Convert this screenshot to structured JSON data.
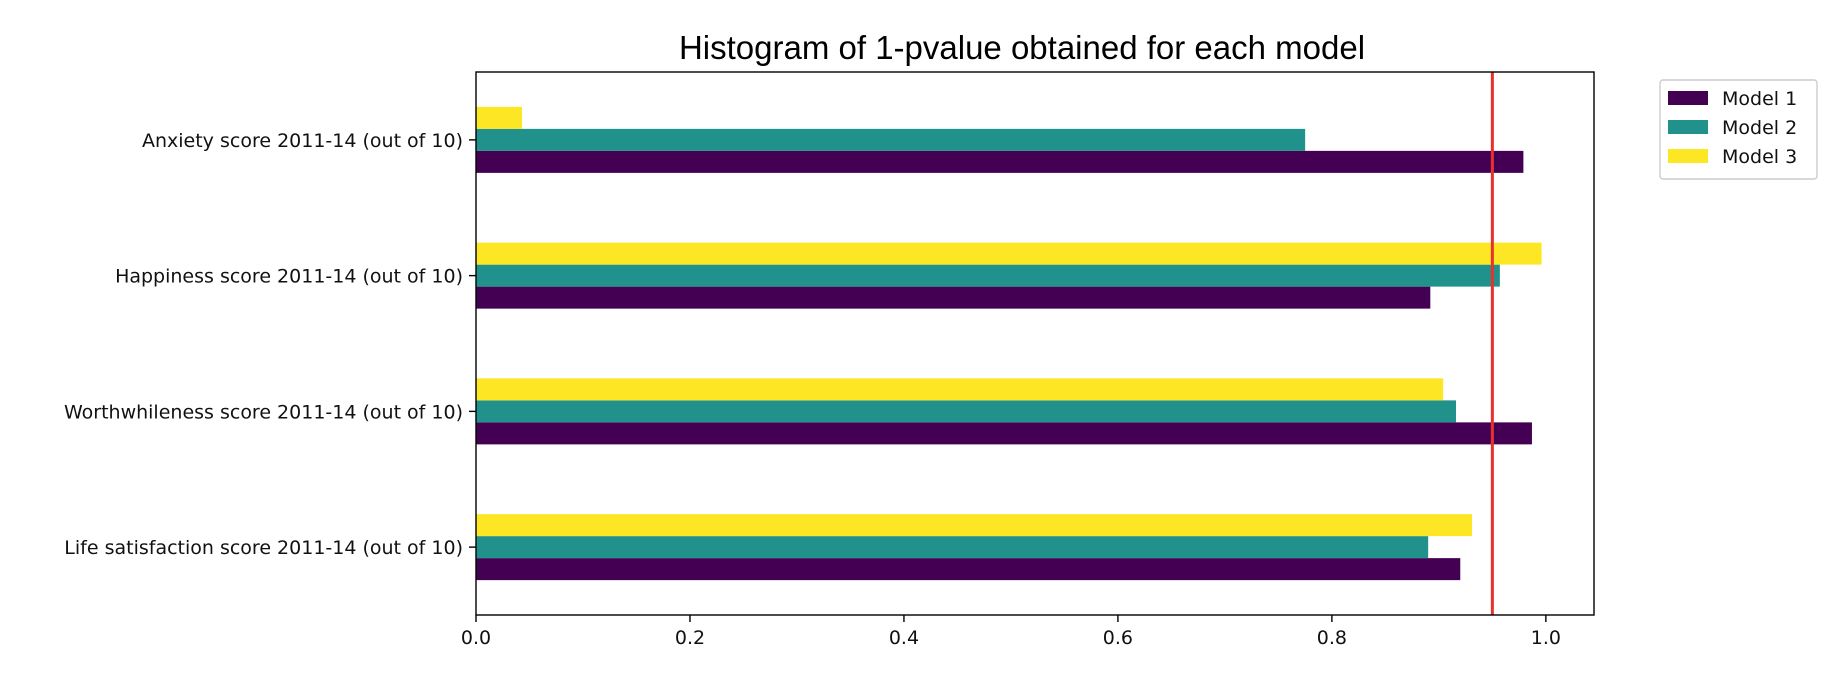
{
  "chart_data": {
    "type": "bar",
    "orientation": "horizontal",
    "title": "Histogram of 1-pvalue obtained for each model",
    "xlabel": "",
    "ylabel": "",
    "xlim": [
      0.0,
      1.045
    ],
    "xticks": [
      0.0,
      0.2,
      0.4,
      0.6,
      0.8,
      1.0
    ],
    "xtick_labels": [
      "0.0",
      "0.2",
      "0.4",
      "0.6",
      "0.8",
      "1.0"
    ],
    "grid": false,
    "legend_position": "outside-top-right",
    "categories": [
      "Life satisfaction score 2011-14 (out of 10)",
      "Worthwhileness score 2011-14 (out of 10)",
      "Happiness score 2011-14 (out of 10)",
      "Anxiety score 2011-14 (out of 10)"
    ],
    "series": [
      {
        "name": "Model 1",
        "color": "#440154",
        "values": [
          0.92,
          0.987,
          0.892,
          0.979
        ]
      },
      {
        "name": "Model 2",
        "color": "#21918c",
        "values": [
          0.89,
          0.916,
          0.957,
          0.775
        ]
      },
      {
        "name": "Model 3",
        "color": "#fde725",
        "values": [
          0.931,
          0.904,
          0.996,
          0.043
        ]
      }
    ],
    "reference_line": {
      "x": 0.95,
      "color": "#e8312f"
    }
  }
}
